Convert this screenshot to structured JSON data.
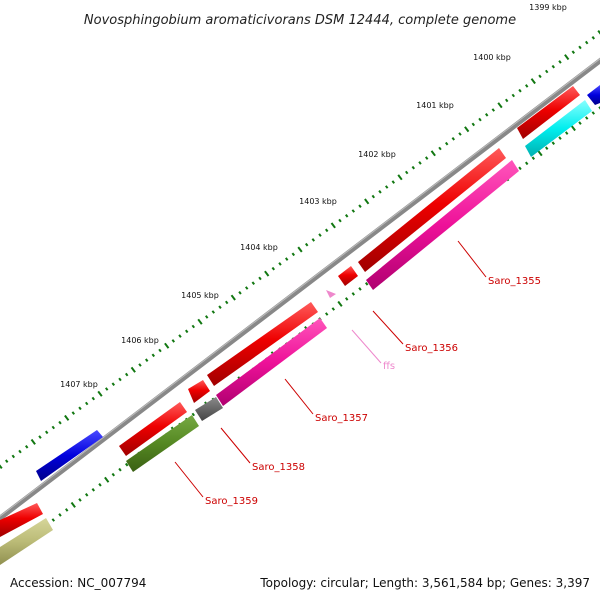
{
  "title": "Novosphingobium aromaticivorans DSM 12444, complete genome",
  "ticks": [
    "1399 kbp",
    "1400 kbp",
    "1401 kbp",
    "1402 kbp",
    "1403 kbp",
    "1404 kbp",
    "1405 kbp",
    "1406 kbp",
    "1407 kbp"
  ],
  "genes": [
    "Saro_1355",
    "Saro_1356",
    "ffs",
    "Saro_1357",
    "Saro_1358",
    "Saro_1359"
  ],
  "footer": {
    "accession": "Accession: NC_007794",
    "summary": "Topology: circular; Length: 3,561,584 bp; Genes: 3,397"
  },
  "colors": {
    "cds": "#ee0000",
    "cds_outer": "#0000dd",
    "gene_magenta": "#ee1199",
    "gene_cyan": "#00eeee",
    "gene_olive": "#558822",
    "gene_khaki": "#bbbb77",
    "gene_gray": "#666666",
    "rna": "#ee88cc",
    "backbone": "#888888",
    "ticks": "#117711",
    "label_line": "#cc0000"
  }
}
